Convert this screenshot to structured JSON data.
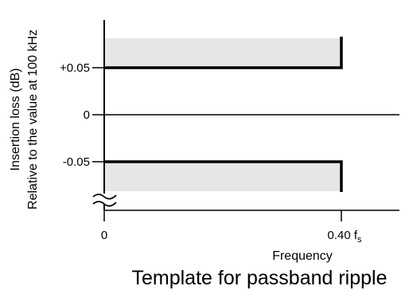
{
  "chart_data": {
    "type": "template",
    "title": "Template for passband ripple",
    "ylabel_line1": "Insertion loss (dB)",
    "ylabel_line2": "Relative to the value at 100 kHz",
    "xlabel": "Frequency",
    "y_ticks": [
      {
        "value": 0.05,
        "label": "+0.05"
      },
      {
        "value": 0,
        "label": "0"
      },
      {
        "value": -0.05,
        "label": "-0.05"
      }
    ],
    "x_ticks": [
      {
        "value": 0,
        "label": "0"
      },
      {
        "value": 0.4,
        "label": "0.40 f",
        "subscript": "s"
      }
    ],
    "upper_limit": {
      "x": [
        0,
        0.4
      ],
      "y": 0.05
    },
    "lower_limit": {
      "x": [
        0,
        0.4
      ],
      "y": -0.05
    },
    "axis_break_below": -0.05
  },
  "colors": {
    "shading": "#e6e6e6",
    "line": "#000000"
  }
}
